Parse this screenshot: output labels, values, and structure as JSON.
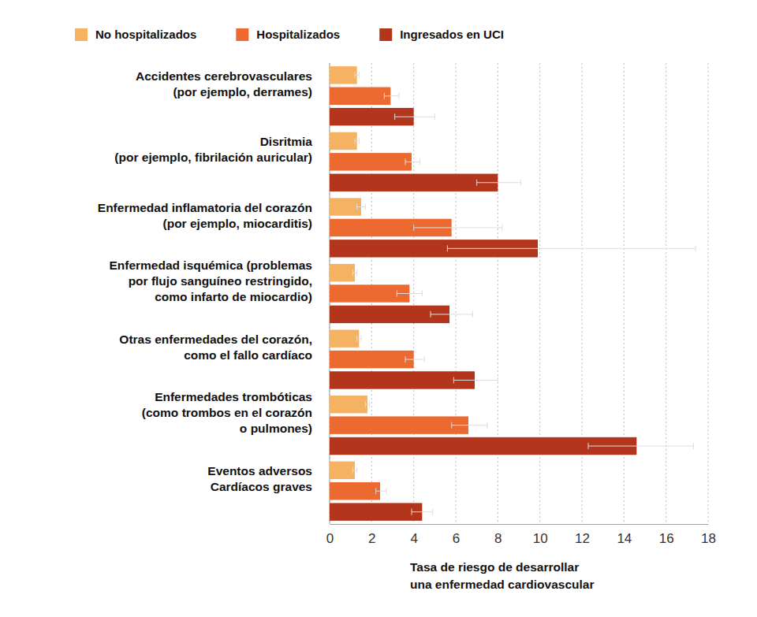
{
  "chart_data": {
    "type": "bar",
    "orientation": "horizontal",
    "legend": "top",
    "grid": true,
    "x_label": "Tasa de riesgo de desarrollar\nuna enfermedad cardiovascular",
    "categories": [
      "Accidentes cerebrovasculares\n(por ejemplo, derrames)",
      "Disritmia\n(por ejemplo, fibrilación auricular)",
      "Enfermedad inflamatoria del corazón\n(por ejemplo, miocarditis)",
      "Enfermedad isquémica (problemas\npor flujo sanguíneo restringido,\ncomo infarto de miocardio)",
      "Otras enfermedades del corazón,\ncomo el fallo cardíaco",
      "Enfermedades trombóticas\n(como trombos en el corazón\no pulmones)",
      "Eventos adversos\nCardíacos graves"
    ],
    "series": [
      {
        "name": "No hospitalizados",
        "color": "#f5b263",
        "values": [
          1.3,
          1.3,
          1.5,
          1.2,
          1.4,
          1.8,
          1.2
        ],
        "ci_low": [
          1.2,
          1.2,
          1.3,
          1.1,
          1.3,
          1.7,
          1.1
        ],
        "ci_high": [
          1.4,
          1.4,
          1.7,
          1.3,
          1.5,
          1.9,
          1.3
        ]
      },
      {
        "name": "Hospitalizados",
        "color": "#ec6a30",
        "values": [
          2.9,
          3.9,
          5.8,
          3.8,
          4.0,
          6.6,
          2.4
        ],
        "ci_low": [
          2.6,
          3.6,
          4.0,
          3.2,
          3.6,
          5.8,
          2.2
        ],
        "ci_high": [
          3.3,
          4.3,
          8.2,
          4.4,
          4.5,
          7.5,
          2.7
        ]
      },
      {
        "name": "Ingresados en UCI",
        "color": "#b3361c",
        "values": [
          4.0,
          8.0,
          9.9,
          5.7,
          6.9,
          14.6,
          4.4
        ],
        "ci_low": [
          3.1,
          7.0,
          5.6,
          4.8,
          5.9,
          12.3,
          3.9
        ],
        "ci_high": [
          5.0,
          9.1,
          17.4,
          6.8,
          8.0,
          17.3,
          4.9
        ]
      }
    ],
    "xlim": [
      0,
      18
    ],
    "xticks": [
      0,
      2,
      4,
      6,
      8,
      10,
      12,
      14,
      16,
      18
    ]
  }
}
